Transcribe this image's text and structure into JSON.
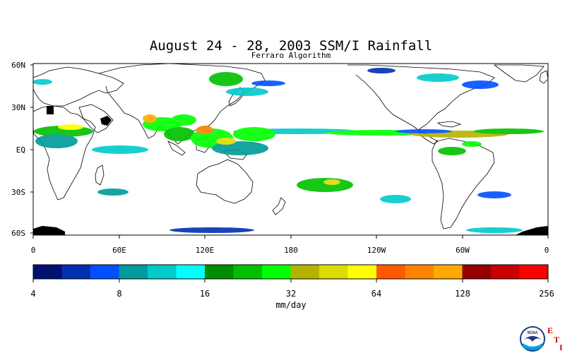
{
  "title": "August 24 - 28, 2003 SSM/I Rainfall",
  "subtitle": "Ferraro Algorithm",
  "map": {
    "lat_labels": [
      "60N",
      "30N",
      "EQ",
      "30S",
      "60S"
    ],
    "lon_labels": [
      "0",
      "60E",
      "120E",
      "180",
      "120W",
      "60W",
      "0"
    ],
    "lat_range": [
      -60,
      60
    ],
    "lon_range": [
      0,
      360
    ]
  },
  "colorbar": {
    "colors": [
      "#001070",
      "#0030b0",
      "#0050ff",
      "#009a9a",
      "#00caca",
      "#00ffff",
      "#008c00",
      "#00c000",
      "#00ff00",
      "#b4b400",
      "#dcdc00",
      "#ffff00",
      "#ff5a00",
      "#ff8200",
      "#ffaa00",
      "#960000",
      "#c80000",
      "#ff0000"
    ],
    "tick_labels": [
      "4",
      "8",
      "16",
      "32",
      "64",
      "128",
      "256"
    ],
    "units": "mm/day"
  },
  "logo": {
    "noaa_text": "NOAA",
    "eti_letters": [
      "E",
      "T",
      "I"
    ]
  }
}
